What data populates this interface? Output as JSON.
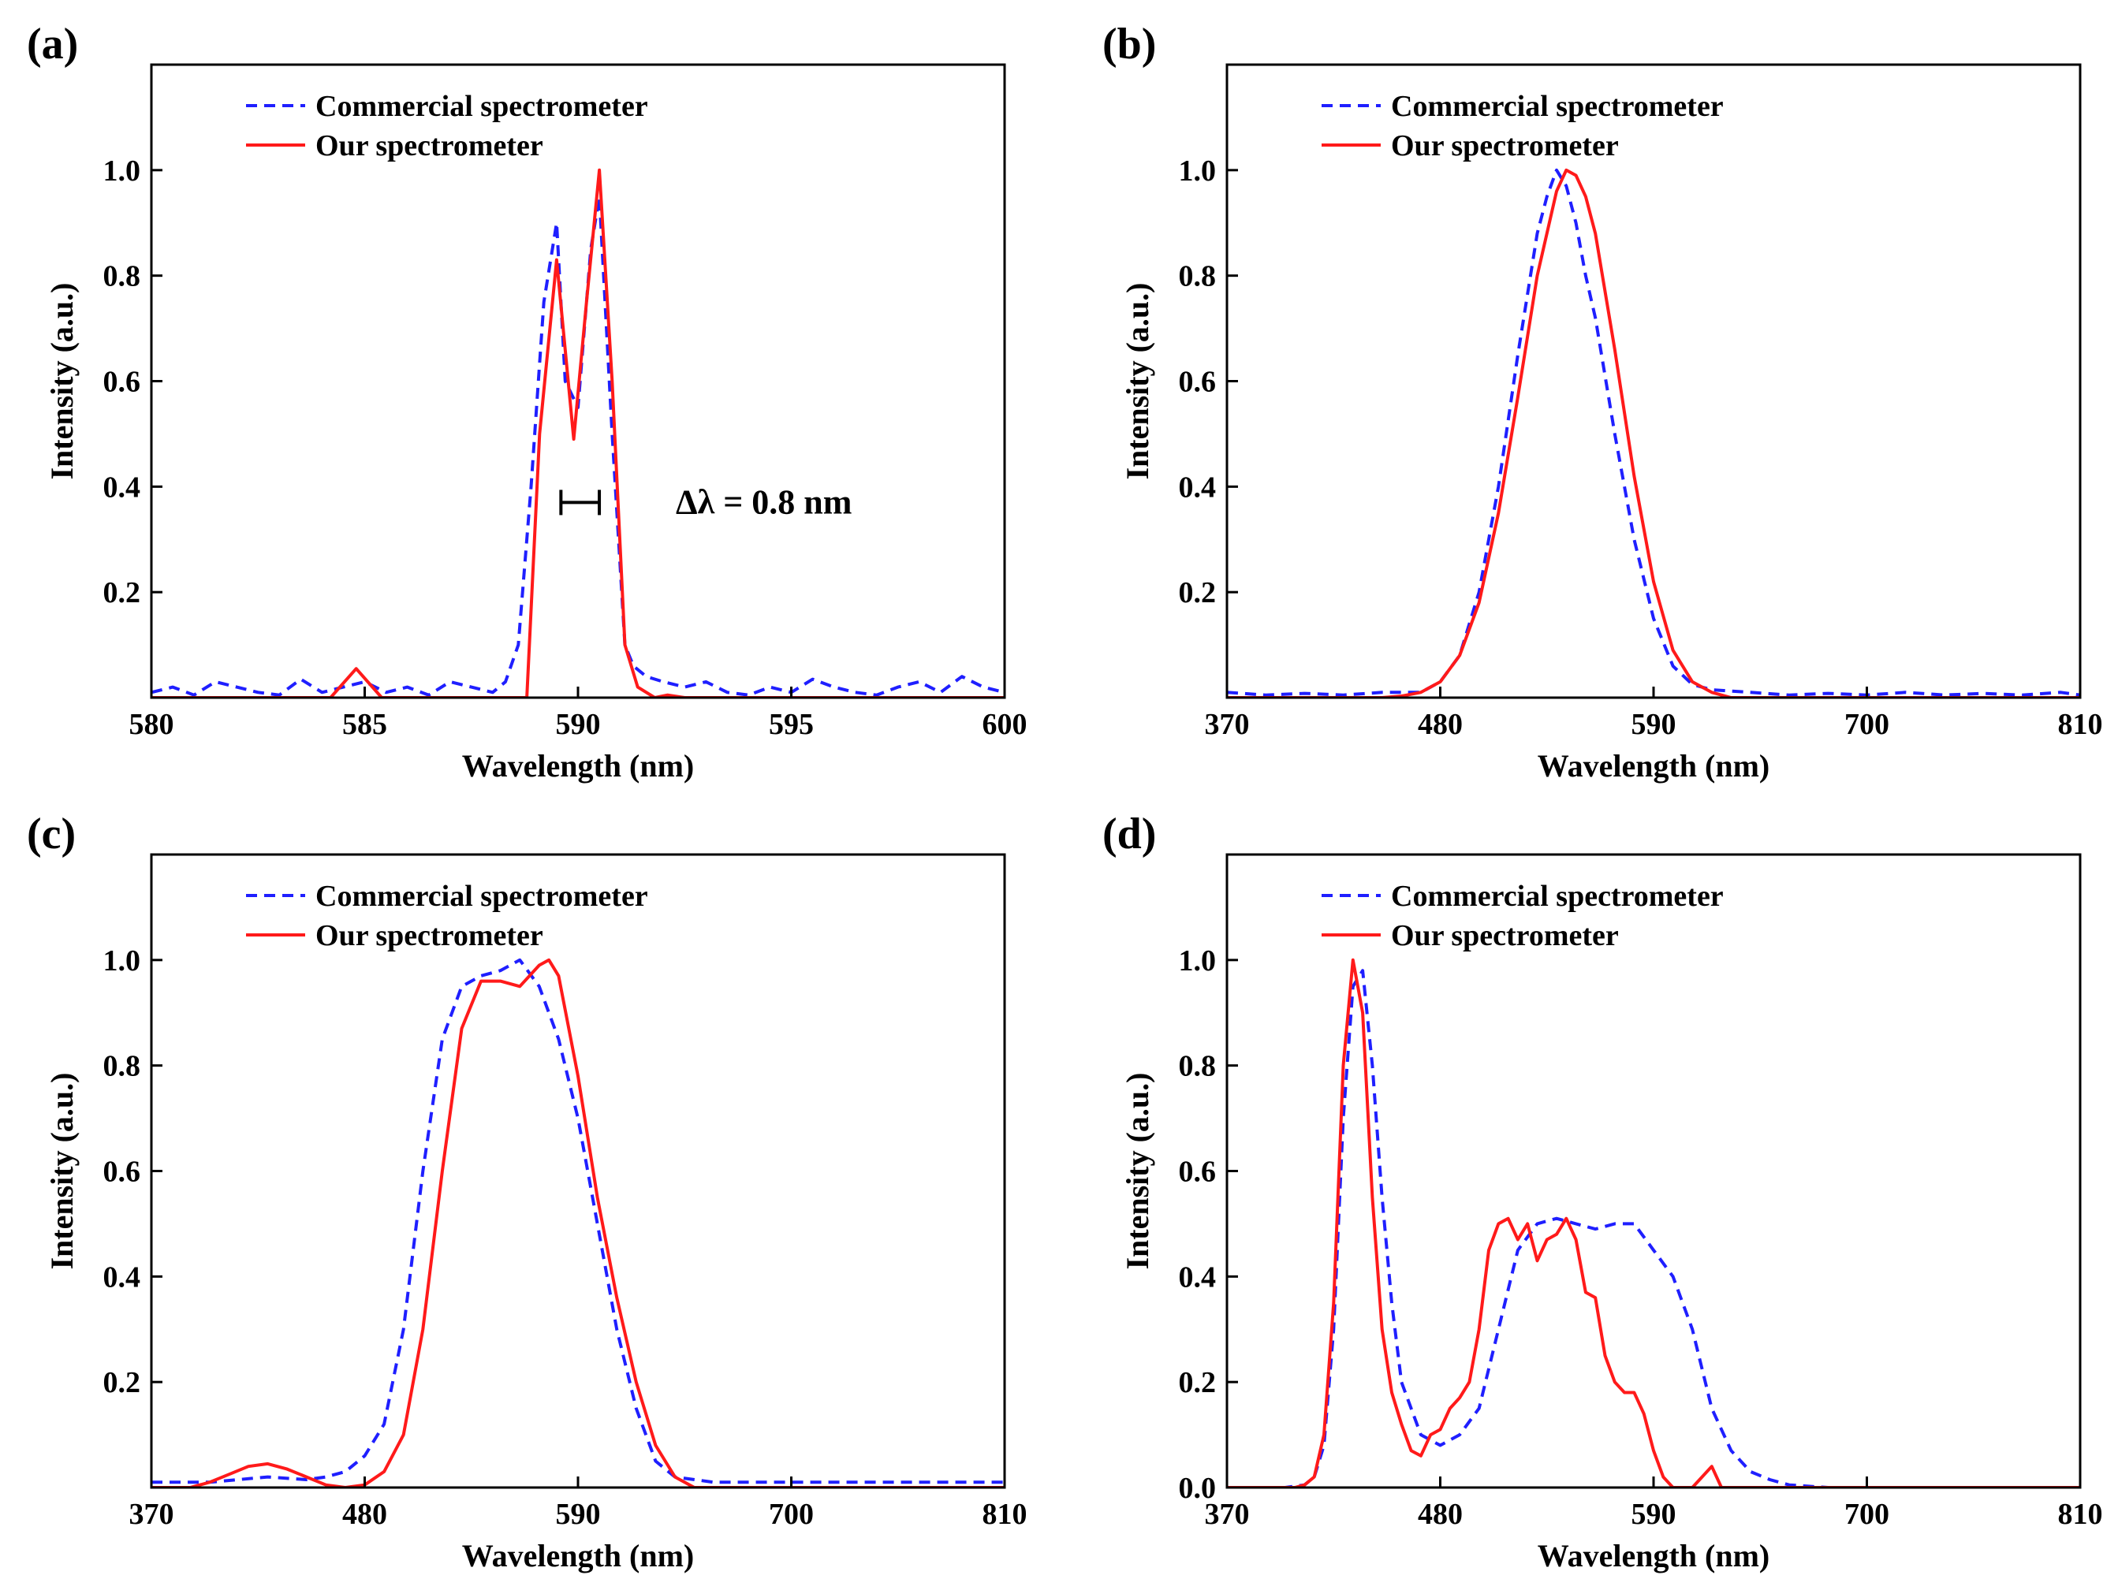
{
  "colors": {
    "commercial": "#1f1fff",
    "ours": "#ff1a1a",
    "axis": "#000000"
  },
  "chart_data": [
    {
      "panel": "(a)",
      "type": "line",
      "xlabel": "Wavelength (nm)",
      "ylabel": "Intensity (a.u.)",
      "xlim": [
        580,
        600
      ],
      "ylim": [
        0,
        1.2
      ],
      "xticks": [
        "580",
        "585",
        "590",
        "595",
        "600"
      ],
      "yticks": [
        "0.2",
        "0.4",
        "0.6",
        "0.8",
        "1.0"
      ],
      "legend": [
        "Commercial spectrometer",
        "Our spectrometer"
      ],
      "annotation": "Δλ = 0.8 nm",
      "resolution_bar": {
        "x1": 589.6,
        "x2": 590.5,
        "y": 0.37
      },
      "series": [
        {
          "name": "Commercial spectrometer",
          "style": "dashed",
          "x": [
            580,
            580.5,
            581,
            581.5,
            582,
            582.5,
            583,
            583.5,
            584,
            584.5,
            585,
            585.5,
            586,
            586.5,
            587,
            587.5,
            588,
            588.3,
            588.6,
            588.9,
            589.2,
            589.5,
            589.7,
            590,
            590.3,
            590.5,
            590.8,
            591.1,
            591.3,
            591.6,
            592,
            592.5,
            593,
            593.5,
            594,
            594.5,
            595,
            595.5,
            596,
            596.5,
            597,
            597.5,
            598,
            598.5,
            599,
            599.5,
            600
          ],
          "y": [
            0.01,
            0.02,
            0.005,
            0.03,
            0.02,
            0.01,
            0.005,
            0.035,
            0.01,
            0.02,
            0.03,
            0.01,
            0.02,
            0.005,
            0.03,
            0.02,
            0.01,
            0.03,
            0.1,
            0.4,
            0.75,
            0.9,
            0.6,
            0.55,
            0.85,
            0.95,
            0.5,
            0.1,
            0.06,
            0.04,
            0.03,
            0.02,
            0.03,
            0.01,
            0.005,
            0.02,
            0.01,
            0.035,
            0.02,
            0.01,
            0.005,
            0.02,
            0.03,
            0.01,
            0.04,
            0.02,
            0.01
          ]
        },
        {
          "name": "Our spectrometer",
          "style": "solid",
          "x": [
            580,
            584.2,
            584.8,
            585.4,
            588.8,
            589.1,
            589.5,
            589.9,
            590.2,
            590.5,
            590.8,
            591.1,
            591.4,
            591.8,
            592.1,
            592.5,
            600
          ],
          "y": [
            0,
            0,
            0.055,
            0,
            0,
            0.5,
            0.83,
            0.49,
            0.75,
            1.0,
            0.6,
            0.1,
            0.02,
            0,
            0.005,
            0,
            0
          ]
        }
      ]
    },
    {
      "panel": "(b)",
      "type": "line",
      "xlabel": "Wavelength (nm)",
      "ylabel": "Intensity (a.u.)",
      "xlim": [
        370,
        810
      ],
      "ylim": [
        0,
        1.2
      ],
      "xticks": [
        "370",
        "480",
        "590",
        "700",
        "810"
      ],
      "yticks": [
        "0.2",
        "0.4",
        "0.6",
        "0.8",
        "1.0"
      ],
      "legend": [
        "Commercial spectrometer",
        "Our spectrometer"
      ],
      "series": [
        {
          "name": "Commercial spectrometer",
          "style": "dashed",
          "x": [
            370,
            390,
            410,
            430,
            450,
            470,
            480,
            490,
            500,
            510,
            520,
            530,
            535,
            540,
            545,
            550,
            555,
            560,
            570,
            580,
            590,
            600,
            610,
            620,
            640,
            660,
            680,
            700,
            720,
            740,
            760,
            780,
            800,
            810
          ],
          "y": [
            0.01,
            0.005,
            0.008,
            0.005,
            0.01,
            0.01,
            0.03,
            0.08,
            0.2,
            0.4,
            0.65,
            0.88,
            0.95,
            1.0,
            0.97,
            0.9,
            0.8,
            0.72,
            0.5,
            0.3,
            0.15,
            0.06,
            0.025,
            0.015,
            0.01,
            0.005,
            0.008,
            0.005,
            0.01,
            0.005,
            0.008,
            0.005,
            0.01,
            0.005
          ]
        },
        {
          "name": "Our spectrometer",
          "style": "solid",
          "x": [
            370,
            450,
            460,
            470,
            480,
            490,
            500,
            510,
            520,
            530,
            540,
            545,
            550,
            555,
            560,
            570,
            580,
            590,
            600,
            610,
            620,
            630,
            810
          ],
          "y": [
            0,
            0,
            0.003,
            0.01,
            0.03,
            0.08,
            0.18,
            0.35,
            0.57,
            0.8,
            0.96,
            1.0,
            0.99,
            0.95,
            0.88,
            0.66,
            0.42,
            0.22,
            0.09,
            0.03,
            0.01,
            0,
            0
          ]
        }
      ]
    },
    {
      "panel": "(c)",
      "type": "line",
      "xlabel": "Wavelength (nm)",
      "ylabel": "Intensity (a.u.)",
      "xlim": [
        370,
        810
      ],
      "ylim": [
        0,
        1.2
      ],
      "xticks": [
        "370",
        "480",
        "590",
        "700",
        "810"
      ],
      "yticks": [
        "0.2",
        "0.4",
        "0.6",
        "0.8",
        "1.0"
      ],
      "legend": [
        "Commercial spectrometer",
        "Our spectrometer"
      ],
      "series": [
        {
          "name": "Commercial spectrometer",
          "style": "dashed",
          "x": [
            370,
            400,
            430,
            450,
            460,
            470,
            480,
            490,
            500,
            510,
            520,
            530,
            540,
            550,
            560,
            570,
            580,
            590,
            600,
            610,
            620,
            630,
            640,
            660,
            700,
            750,
            810
          ],
          "y": [
            0.01,
            0.01,
            0.02,
            0.015,
            0.02,
            0.03,
            0.06,
            0.12,
            0.3,
            0.6,
            0.85,
            0.95,
            0.97,
            0.98,
            1.0,
            0.95,
            0.85,
            0.7,
            0.5,
            0.3,
            0.15,
            0.05,
            0.02,
            0.01,
            0.01,
            0.01,
            0.01
          ]
        },
        {
          "name": "Our spectrometer",
          "style": "solid",
          "x": [
            370,
            390,
            400,
            410,
            420,
            430,
            440,
            450,
            460,
            470,
            480,
            490,
            500,
            510,
            520,
            530,
            540,
            550,
            560,
            570,
            575,
            580,
            590,
            600,
            610,
            620,
            630,
            640,
            650,
            810
          ],
          "y": [
            0,
            0,
            0.01,
            0.025,
            0.04,
            0.045,
            0.035,
            0.02,
            0.005,
            0,
            0.005,
            0.03,
            0.1,
            0.3,
            0.6,
            0.87,
            0.96,
            0.96,
            0.95,
            0.99,
            1.0,
            0.97,
            0.78,
            0.55,
            0.36,
            0.2,
            0.08,
            0.02,
            0,
            0
          ]
        }
      ]
    },
    {
      "panel": "(d)",
      "type": "line",
      "xlabel": "Wavelength (nm)",
      "ylabel": "Intensity (a.u.)",
      "xlim": [
        370,
        810
      ],
      "ylim": [
        0,
        1.2
      ],
      "xticks": [
        "370",
        "480",
        "590",
        "700",
        "810"
      ],
      "yticks": [
        "0.0",
        "0.2",
        "0.4",
        "0.6",
        "0.8",
        "1.0"
      ],
      "legend": [
        "Commercial spectrometer",
        "Our spectrometer"
      ],
      "series": [
        {
          "name": "Commercial spectrometer",
          "style": "dashed",
          "x": [
            370,
            400,
            410,
            415,
            420,
            425,
            430,
            435,
            440,
            445,
            450,
            455,
            460,
            470,
            480,
            490,
            500,
            510,
            520,
            530,
            540,
            550,
            560,
            570,
            580,
            590,
            600,
            610,
            620,
            630,
            640,
            650,
            660,
            680,
            700,
            750,
            810
          ],
          "y": [
            0,
            0,
            0.005,
            0.02,
            0.08,
            0.3,
            0.7,
            0.95,
            0.98,
            0.8,
            0.55,
            0.35,
            0.2,
            0.1,
            0.08,
            0.1,
            0.15,
            0.3,
            0.45,
            0.5,
            0.51,
            0.5,
            0.49,
            0.5,
            0.5,
            0.45,
            0.4,
            0.3,
            0.15,
            0.07,
            0.03,
            0.015,
            0.005,
            0,
            0,
            0,
            0
          ]
        },
        {
          "name": "Our spectrometer",
          "style": "solid",
          "x": [
            370,
            405,
            410,
            415,
            420,
            425,
            430,
            435,
            440,
            445,
            450,
            455,
            460,
            465,
            470,
            475,
            480,
            485,
            490,
            495,
            500,
            505,
            510,
            515,
            520,
            525,
            530,
            535,
            540,
            545,
            550,
            555,
            560,
            565,
            570,
            575,
            580,
            585,
            590,
            595,
            600,
            605,
            610,
            615,
            620,
            625,
            628,
            630,
            632,
            635,
            810
          ],
          "y": [
            0,
            0,
            0.005,
            0.02,
            0.1,
            0.35,
            0.8,
            1.0,
            0.9,
            0.55,
            0.3,
            0.18,
            0.12,
            0.07,
            0.06,
            0.1,
            0.11,
            0.15,
            0.17,
            0.2,
            0.3,
            0.45,
            0.5,
            0.51,
            0.47,
            0.5,
            0.43,
            0.47,
            0.48,
            0.51,
            0.47,
            0.37,
            0.36,
            0.25,
            0.2,
            0.18,
            0.18,
            0.14,
            0.07,
            0.02,
            0,
            0,
            0,
            0.02,
            0.04,
            0,
            0,
            0,
            0,
            0,
            0
          ]
        }
      ]
    }
  ]
}
